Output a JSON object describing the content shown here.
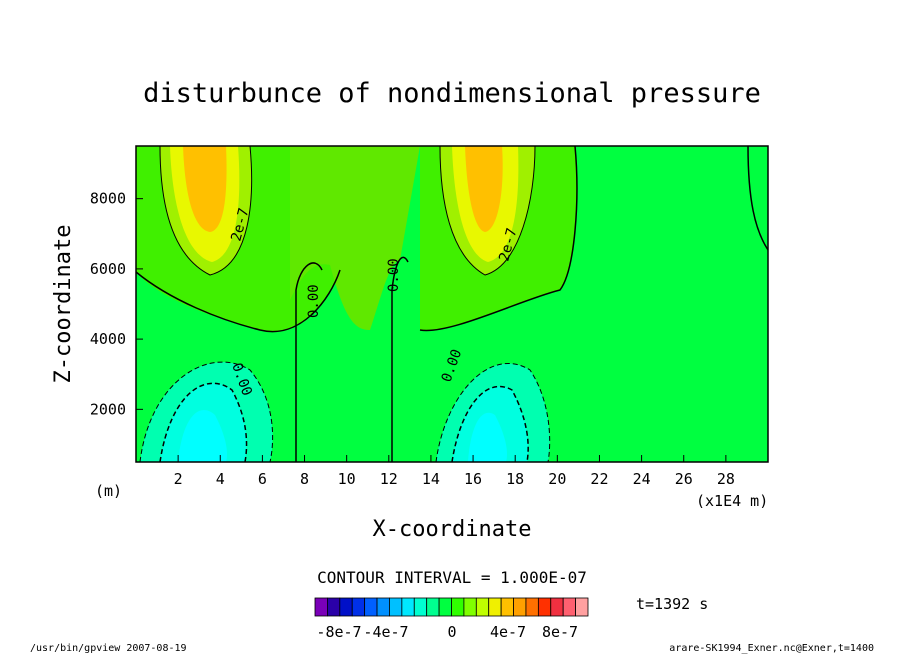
{
  "chart_data": {
    "type": "contour",
    "title": "disturbunce of nondimensional pressure",
    "xlabel": "X-coordinate",
    "ylabel": "Z-coordinate",
    "x_unit_left": "(m)",
    "x_unit_right": "(x1E4 m)",
    "xlim": [
      0,
      30
    ],
    "ylim": [
      500,
      9500
    ],
    "xticks": [
      "2",
      "4",
      "6",
      "8",
      "10",
      "12",
      "14",
      "16",
      "18",
      "20",
      "22",
      "24",
      "26",
      "28"
    ],
    "yticks": [
      "2000",
      "4000",
      "6000",
      "8000"
    ],
    "contour_labels": [
      "2e-7",
      "0.00",
      "0.00",
      "0.00",
      "2e-7",
      "0.00"
    ],
    "contour_interval_text": "CONTOUR INTERVAL = 1.000E-07",
    "time_text": "t=1392 s",
    "colorbar": {
      "labels": [
        "-8e-7",
        "-4e-7",
        "0",
        "4e-7",
        "8e-7"
      ],
      "colors": [
        "#7a00b8",
        "#2a00a8",
        "#0010c8",
        "#0030e8",
        "#0060ff",
        "#0090ff",
        "#00c0ff",
        "#00e8ff",
        "#00ffd0",
        "#00ff90",
        "#00ff40",
        "#30ff00",
        "#80ff00",
        "#c0ff00",
        "#f0f000",
        "#ffc000",
        "#ffa000",
        "#ff7000",
        "#ff3000",
        "#f03040",
        "#ff6070",
        "#ffa0a0"
      ]
    },
    "peaks": [
      {
        "x": 3.5,
        "z": 8500,
        "value": 5e-07
      },
      {
        "x": 16.5,
        "z": 8500,
        "value": 5e-07
      },
      {
        "x": 3.5,
        "z": 800,
        "value": -6e-07
      },
      {
        "x": 16.5,
        "z": 800,
        "value": -6e-07
      }
    ]
  },
  "footer": {
    "left": "/usr/bin/gpview   2007-08-19",
    "right": "arare-SK1994_Exner.nc@Exner,t=1400"
  }
}
